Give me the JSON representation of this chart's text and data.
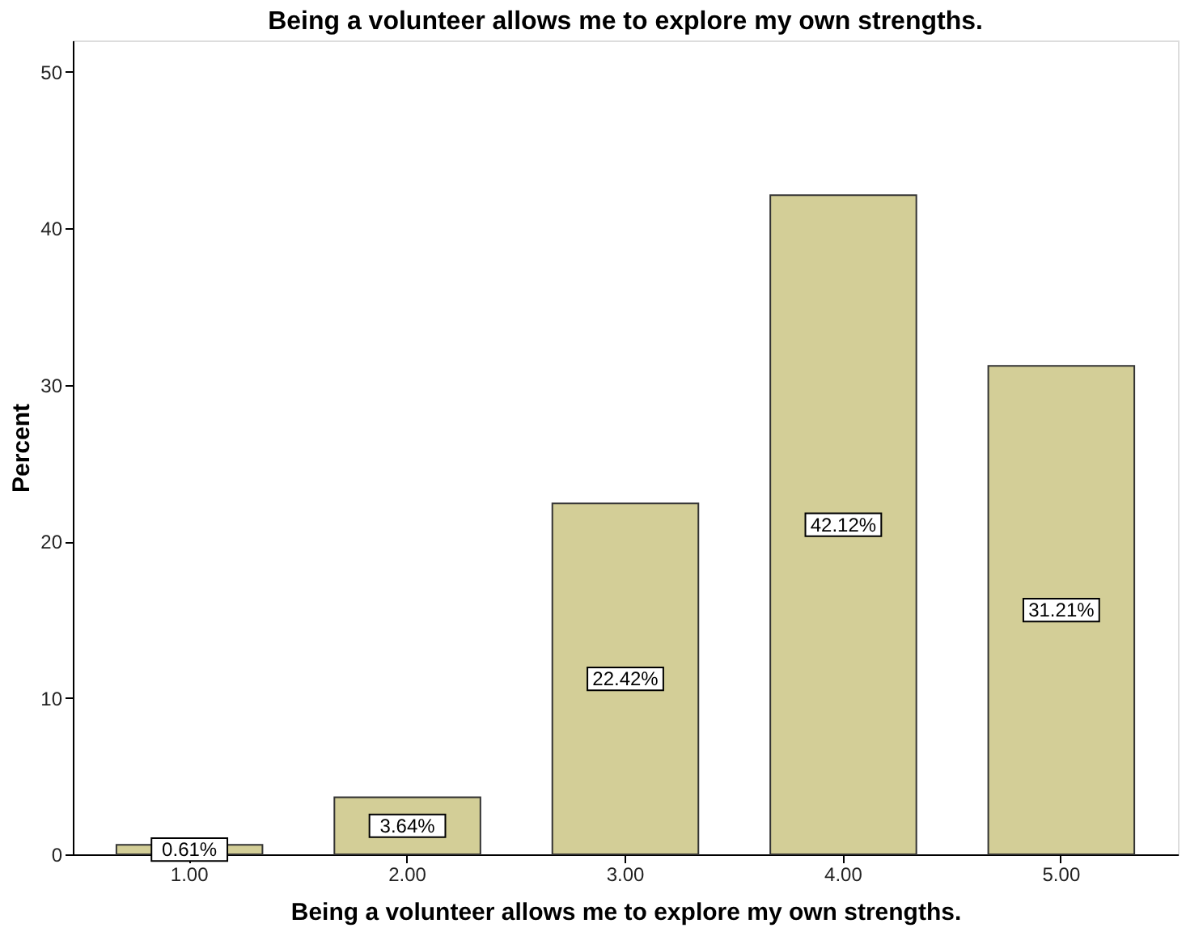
{
  "chart_data": {
    "type": "bar",
    "title": "Being a volunteer allows me to explore my own strengths.",
    "xlabel": "Being a volunteer allows me to explore my own strengths.",
    "ylabel": "Percent",
    "categories": [
      "1.00",
      "2.00",
      "3.00",
      "4.00",
      "5.00"
    ],
    "values": [
      0.61,
      3.64,
      22.42,
      42.12,
      31.21
    ],
    "value_labels": [
      "0.61%",
      "3.64%",
      "22.42%",
      "42.12%",
      "31.21%"
    ],
    "color": "#d3ce97",
    "ylim": [
      0,
      52
    ],
    "yticks": [
      0,
      10,
      20,
      30,
      40,
      50
    ],
    "grid": false
  }
}
